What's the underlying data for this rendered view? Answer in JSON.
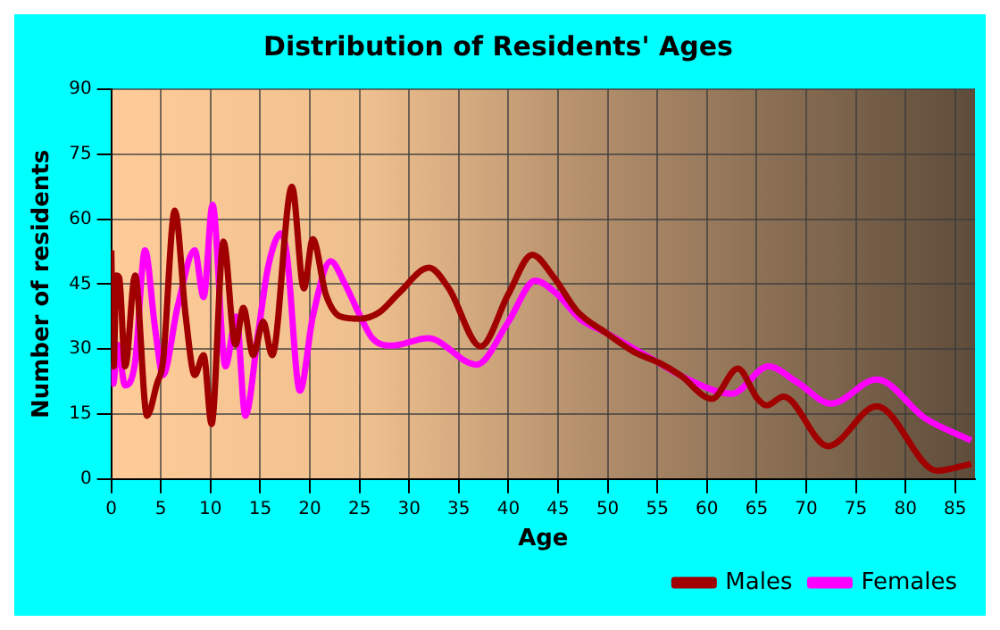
{
  "chart_data": {
    "type": "line",
    "title": "Distribution of Residents' Ages",
    "xlabel": "Age",
    "ylabel": "Number of residents",
    "xlim": [
      0,
      87
    ],
    "xticks": [
      0,
      5,
      10,
      15,
      20,
      25,
      30,
      35,
      40,
      45,
      50,
      55,
      60,
      65,
      70,
      75,
      80,
      85
    ],
    "ylim": [
      0,
      90
    ],
    "yticks": [
      0,
      15,
      30,
      45,
      60,
      75,
      90
    ],
    "grid": true,
    "legend": "bottom",
    "marker": "none",
    "line_style": "solid",
    "series": [
      {
        "name": "Males",
        "color": "#a00000",
        "x": [
          0,
          0.24,
          0.5,
          0.8,
          1.4,
          2.4,
          3.6,
          4.6,
          5.2,
          6.4,
          7.5,
          8.4,
          9.3,
          10.1,
          11.3,
          12.5,
          13.3,
          14.3,
          15.3,
          16.2,
          18.2,
          19.4,
          20.3,
          21.6,
          23.1,
          25,
          27,
          29,
          32,
          34,
          37.2,
          40,
          42.4,
          44.6,
          46.9,
          49.8,
          52.7,
          55.3,
          57.3,
          60.5,
          63.1,
          65.1,
          66,
          67.7,
          72.2,
          77.1,
          83.2,
          86.6
        ],
        "values": [
          52.8,
          26,
          47,
          46.5,
          26,
          47,
          14.6,
          22,
          27,
          62,
          37.5,
          24,
          28.6,
          12.7,
          54.8,
          31,
          39.5,
          28.6,
          36.3,
          28.6,
          67.5,
          44,
          55.4,
          42.7,
          37.5,
          37,
          38.5,
          43,
          48.8,
          44,
          30.6,
          42.7,
          51.8,
          46.5,
          38.8,
          33.8,
          29.3,
          26.7,
          24,
          18.5,
          25.5,
          18.5,
          17,
          19,
          7.6,
          16.8,
          1.9,
          3.5
        ]
      },
      {
        "name": "Females",
        "color": "#ff00ff",
        "x": [
          0,
          0.2,
          0.6,
          1.4,
          2.4,
          3.4,
          4.4,
          5.2,
          6.7,
          8.4,
          9.3,
          10.2,
          11.5,
          12.6,
          13.5,
          14.8,
          15.8,
          17.1,
          17.7,
          19,
          20.3,
          22.1,
          23.5,
          25.1,
          26.3,
          28.3,
          31.9,
          36.8,
          40,
          42.7,
          44.9,
          47.2,
          49.8,
          54.7,
          58.1,
          62.5,
          66.2,
          69.1,
          72.5,
          77.1,
          82,
          86.6
        ],
        "values": [
          27,
          22,
          31,
          21.6,
          27,
          52.8,
          35,
          24,
          40,
          52.8,
          42,
          63.3,
          26,
          37.5,
          14.6,
          33.8,
          49,
          56.7,
          51.6,
          20.4,
          37.5,
          50.3,
          45.2,
          37.5,
          32.5,
          30.8,
          32.5,
          26.4,
          36.3,
          45.8,
          42.7,
          37,
          33.8,
          27.4,
          23,
          19.7,
          26,
          22.3,
          17.4,
          23,
          14,
          8.9
        ]
      }
    ]
  }
}
